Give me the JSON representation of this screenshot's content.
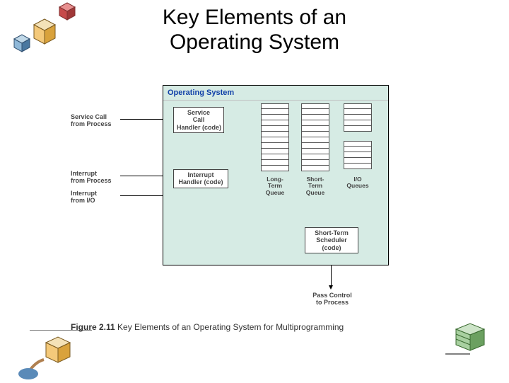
{
  "title_line1": "Key Elements of an",
  "title_line2": "Operating System",
  "os_title": "Operating System",
  "labels": {
    "service_call": "Service Call\nfrom Process",
    "interrupt_proc": "Interrupt\nfrom Process",
    "interrupt_io": "Interrupt\nfrom I/O"
  },
  "boxes": {
    "svc_handler": "Service\nCall\nHandler (code)",
    "int_handler": "Interrupt\nHandler (code)",
    "sts": "Short-Term\nScheduler\n(code)"
  },
  "queues": {
    "long": "Long-\nTerm\nQueue",
    "short": "Short-\nTerm\nQueue",
    "io": "I/O\nQueues"
  },
  "pass": "Pass Control\nto Process",
  "caption_num": "Figure 2.11",
  "caption_text": "  Key Elements of an Operating System for Multiprogramming",
  "colors": {
    "os_fill": "#d6ebe4",
    "title_blue": "#1040a8",
    "cube_orange_light": "#f4c97a",
    "cube_orange_dark": "#d9a23c",
    "cube_red": "#c74a4a",
    "cube_blue_light": "#8fb8d8",
    "cube_blue_dark": "#4a78a0",
    "cube_green_light": "#a8d0a0",
    "cube_green_dark": "#6ba060"
  },
  "queue_rows": {
    "long": 12,
    "short": 12,
    "io": 5
  }
}
